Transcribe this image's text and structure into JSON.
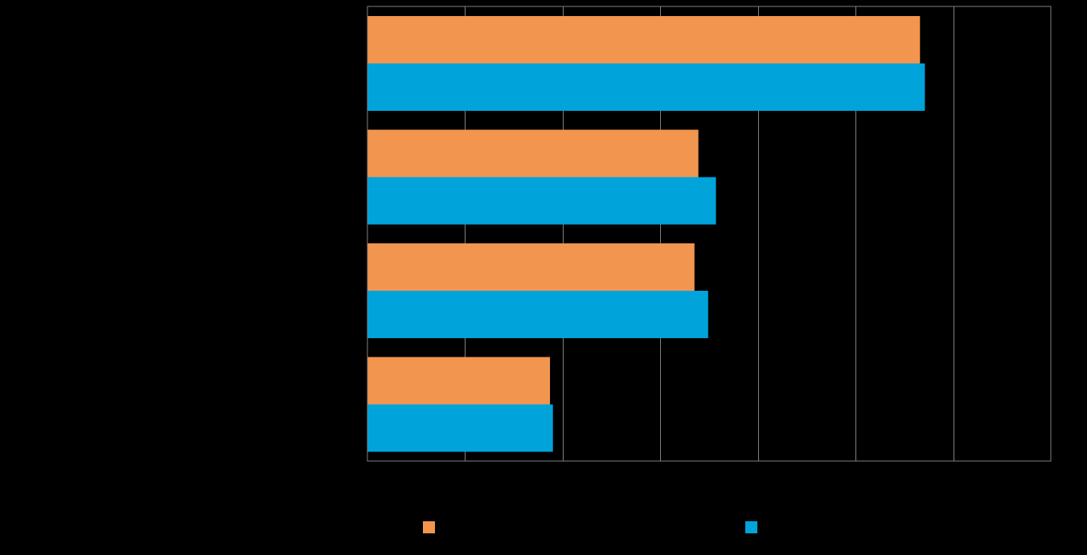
{
  "background_color": "#000000",
  "chart_data": {
    "type": "bar",
    "orientation": "horizontal",
    "title": "",
    "xlabel": "",
    "ylabel": "",
    "xlim": [
      0,
      7
    ],
    "grid": true,
    "legend_position": "bottom",
    "gridline_color": "#808080",
    "categories": [
      "",
      "",
      "",
      ""
    ],
    "series": [
      {
        "color": "#F2954F",
        "values": [
          5.66,
          3.39,
          3.35,
          1.87
        ]
      },
      {
        "color": "#00A3DA",
        "values": [
          5.71,
          3.57,
          3.49,
          1.9
        ]
      }
    ]
  }
}
